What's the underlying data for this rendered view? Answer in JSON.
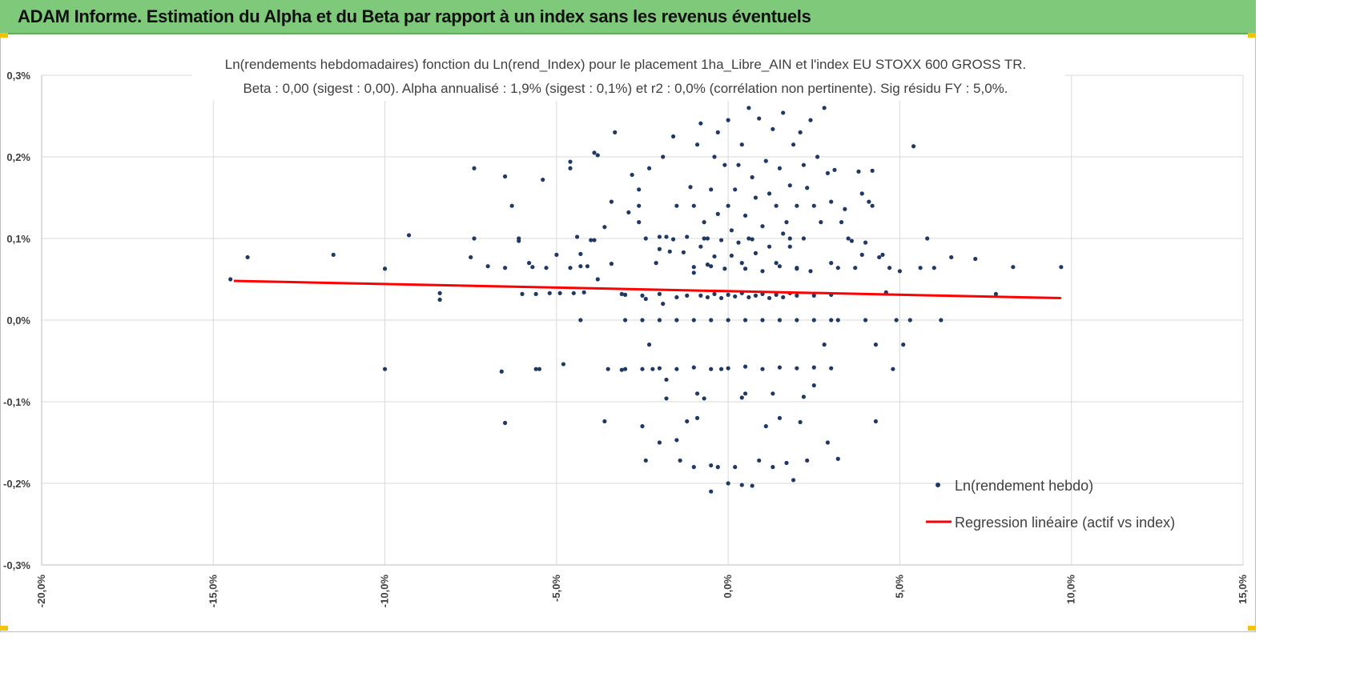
{
  "header": {
    "title": "ADAM Informe. Estimation du Alpha et du Beta par rapport à un index sans les revenus éventuels",
    "background": "#7ec97a"
  },
  "chart_data": {
    "type": "scatter",
    "title": "Ln(rendements hebdomadaires) fonction du Ln(rend_Index) pour le placement 1ha_Libre_AIN et l'index EU STOXX 600 GROSS TR.",
    "subtitle": "Beta : 0,00 (sigest : 0,00).  Alpha annualisé : 1,9% (sigest : 0,1%) et r2 : 0,0% (corrélation non pertinente). Sig résidu FY : 5,0%.",
    "xlim": [
      -20,
      15
    ],
    "ylim": [
      -0.3,
      0.3
    ],
    "x_ticks": [
      {
        "value": -20,
        "label": "-20,0%"
      },
      {
        "value": -15,
        "label": "-15,0%"
      },
      {
        "value": -10,
        "label": "-10,0%"
      },
      {
        "value": -5,
        "label": "-5,0%"
      },
      {
        "value": 0,
        "label": "0,0%"
      },
      {
        "value": 5,
        "label": "5,0%"
      },
      {
        "value": 10,
        "label": "10,0%"
      },
      {
        "value": 15,
        "label": "15,0%"
      }
    ],
    "y_ticks": [
      {
        "value": 0.3,
        "label": "0,3%"
      },
      {
        "value": 0.2,
        "label": "0,2%"
      },
      {
        "value": 0.1,
        "label": "0,1%"
      },
      {
        "value": 0.0,
        "label": "0,0%"
      },
      {
        "value": -0.1,
        "label": "-0,1%"
      },
      {
        "value": -0.2,
        "label": "-0,2%"
      },
      {
        "value": -0.3,
        "label": "-0,3%"
      }
    ],
    "grid": true,
    "legend_position": "bottom-right",
    "series": [
      {
        "name": "Ln(rendement hebdo)",
        "kind": "scatter",
        "color": "#1f3864",
        "points": [
          [
            -14.5,
            0.05
          ],
          [
            -14,
            0.077
          ],
          [
            -11.5,
            0.08
          ],
          [
            -10,
            0.063
          ],
          [
            -10,
            -0.06
          ],
          [
            -9.3,
            0.104
          ],
          [
            -8.4,
            0.033
          ],
          [
            -8.4,
            0.025
          ],
          [
            -7.5,
            0.077
          ],
          [
            -7.4,
            0.186
          ],
          [
            -7.4,
            0.1
          ],
          [
            -7,
            0.066
          ],
          [
            -6.6,
            -0.063
          ],
          [
            -6.5,
            -0.126
          ],
          [
            -6.5,
            0.176
          ],
          [
            -6.5,
            0.064
          ],
          [
            -6.3,
            0.14
          ],
          [
            -6.1,
            0.1
          ],
          [
            -6.1,
            0.097
          ],
          [
            -6,
            0.032
          ],
          [
            -5.8,
            0.07
          ],
          [
            -5.7,
            0.065
          ],
          [
            -5.6,
            0.032
          ],
          [
            -5.6,
            -0.06
          ],
          [
            -5.5,
            -0.06
          ],
          [
            -5.4,
            0.172
          ],
          [
            -5.3,
            0.064
          ],
          [
            -5.2,
            0.033
          ],
          [
            -5,
            0.08
          ],
          [
            -4.9,
            0.033
          ],
          [
            -4.8,
            -0.054
          ],
          [
            -4.6,
            0.064
          ],
          [
            -4.6,
            0.194
          ],
          [
            -4.6,
            0.186
          ],
          [
            -4.5,
            0.033
          ],
          [
            -4.4,
            0.102
          ],
          [
            -4.3,
            0.066
          ],
          [
            -4.3,
            0.081
          ],
          [
            -4.3,
            0
          ],
          [
            -4.2,
            0.034
          ],
          [
            -4.1,
            0.066
          ],
          [
            -4.0,
            0.098
          ],
          [
            -3.9,
            0.098
          ],
          [
            -3.9,
            0.205
          ],
          [
            -3.8,
            0.202
          ],
          [
            -3.8,
            0.05
          ],
          [
            -3.6,
            -0.124
          ],
          [
            -3.6,
            0.114
          ],
          [
            -3.4,
            0.145
          ],
          [
            -3.4,
            0.069
          ],
          [
            -3.3,
            0.23
          ],
          [
            -3.1,
            -0.061
          ],
          [
            -3.1,
            0.032
          ],
          [
            -2.9,
            0.132
          ],
          [
            -2.8,
            0.178
          ],
          [
            -2.6,
            0.14
          ],
          [
            -2.6,
            0.16
          ],
          [
            -2.6,
            0.12
          ],
          [
            -2.5,
            -0.13
          ],
          [
            -2.4,
            0.026
          ],
          [
            -2.4,
            -0.172
          ],
          [
            -2.3,
            0.186
          ],
          [
            -2.3,
            -0.03
          ],
          [
            -2.2,
            -0.06
          ],
          [
            -2.1,
            0.07
          ],
          [
            -2.0,
            0.102
          ],
          [
            -2.0,
            -0.15
          ],
          [
            -2.0,
            0.087
          ],
          [
            -1.9,
            0.2
          ],
          [
            -1.9,
            0.02
          ],
          [
            -1.8,
            0.102
          ],
          [
            -1.8,
            -0.073
          ],
          [
            -1.7,
            0.084
          ],
          [
            -1.6,
            0.225
          ],
          [
            -1.5,
            0.14
          ],
          [
            -1.5,
            -0.147
          ],
          [
            -1.4,
            -0.172
          ],
          [
            -1.3,
            0.083
          ],
          [
            -1.2,
            0.102
          ],
          [
            -1.2,
            -0.124
          ],
          [
            -1.1,
            0.163
          ],
          [
            -1.0,
            0.14
          ],
          [
            -1.0,
            0.058
          ],
          [
            -1.0,
            -0.18
          ],
          [
            -0.9,
            0.215
          ],
          [
            -0.9,
            -0.12
          ],
          [
            -0.8,
            0.09
          ],
          [
            -0.8,
            0.241
          ],
          [
            -0.7,
            0.12
          ],
          [
            -0.7,
            -0.096
          ],
          [
            -0.6,
            0.1
          ],
          [
            -0.6,
            0.068
          ],
          [
            -0.5,
            0.16
          ],
          [
            -0.5,
            -0.178
          ],
          [
            -0.5,
            -0.21
          ],
          [
            -0.4,
            0.078
          ],
          [
            -0.4,
            0.2
          ],
          [
            -0.3,
            0.23
          ],
          [
            -0.3,
            0.13
          ],
          [
            -0.3,
            -0.18
          ],
          [
            -0.2,
            0.098
          ],
          [
            -0.2,
            -0.06
          ],
          [
            -0.1,
            0.19
          ],
          [
            -0.1,
            0.063
          ],
          [
            0,
            0.245
          ],
          [
            0,
            0.14
          ],
          [
            0,
            -0.2
          ],
          [
            0.1,
            0.079
          ],
          [
            0.1,
            0.11
          ],
          [
            0.2,
            0.16
          ],
          [
            0.2,
            -0.18
          ],
          [
            0.3,
            0.19
          ],
          [
            0.3,
            0.095
          ],
          [
            0.4,
            0.07
          ],
          [
            0.4,
            0.215
          ],
          [
            0.4,
            -0.202
          ],
          [
            0.5,
            0.128
          ],
          [
            0.5,
            -0.09
          ],
          [
            0.6,
            0.26
          ],
          [
            0.6,
            0.1
          ],
          [
            0.7,
            0.175
          ],
          [
            0.7,
            -0.203
          ],
          [
            0.8,
            0.15
          ],
          [
            0.8,
            0.082
          ],
          [
            0.9,
            0.247
          ],
          [
            0.9,
            -0.172
          ],
          [
            1.0,
            0.115
          ],
          [
            1.0,
            0.06
          ],
          [
            1.1,
            0.195
          ],
          [
            1.1,
            -0.13
          ],
          [
            1.2,
            0.155
          ],
          [
            1.2,
            0.09
          ],
          [
            1.3,
            0.234
          ],
          [
            1.3,
            -0.18
          ],
          [
            1.4,
            0.14
          ],
          [
            1.4,
            0.07
          ],
          [
            1.5,
            0.186
          ],
          [
            1.5,
            -0.12
          ],
          [
            1.6,
            0.106
          ],
          [
            1.6,
            0.254
          ],
          [
            1.7,
            0.12
          ],
          [
            1.7,
            -0.175
          ],
          [
            1.8,
            0.165
          ],
          [
            1.8,
            0.09
          ],
          [
            1.9,
            0.215
          ],
          [
            1.9,
            -0.196
          ],
          [
            2.0,
            0.14
          ],
          [
            2.0,
            0.064
          ],
          [
            2.1,
            0.23
          ],
          [
            2.1,
            -0.125
          ],
          [
            2.2,
            0.19
          ],
          [
            2.2,
            0.1
          ],
          [
            2.3,
            0.162
          ],
          [
            2.3,
            -0.172
          ],
          [
            2.4,
            0.245
          ],
          [
            2.4,
            0.06
          ],
          [
            2.5,
            0.14
          ],
          [
            2.5,
            -0.08
          ],
          [
            2.6,
            0.2
          ],
          [
            2.7,
            0.12
          ],
          [
            2.8,
            0.26
          ],
          [
            2.8,
            -0.03
          ],
          [
            2.9,
            0.18
          ],
          [
            2.9,
            -0.15
          ],
          [
            3.0,
            0.145
          ],
          [
            3.0,
            0.07
          ],
          [
            3.1,
            0.184
          ],
          [
            3.2,
            0.064
          ],
          [
            3.2,
            -0.17
          ],
          [
            3.3,
            0.12
          ],
          [
            3.4,
            0.136
          ],
          [
            3.5,
            0.1
          ],
          [
            3.6,
            0.097
          ],
          [
            3.7,
            0.064
          ],
          [
            3.8,
            0.182
          ],
          [
            3.9,
            0.155
          ],
          [
            3.9,
            0.08
          ],
          [
            4.0,
            0.095
          ],
          [
            4.1,
            0.145
          ],
          [
            4.2,
            0.14
          ],
          [
            4.2,
            0.183
          ],
          [
            4.3,
            -0.124
          ],
          [
            4.3,
            -0.03
          ],
          [
            4.4,
            0.077
          ],
          [
            4.5,
            0.08
          ],
          [
            4.6,
            0.034
          ],
          [
            4.7,
            0.064
          ],
          [
            4.8,
            -0.06
          ],
          [
            4.9,
            0
          ],
          [
            5.0,
            0.06
          ],
          [
            5.1,
            -0.03
          ],
          [
            5.3,
            0
          ],
          [
            5.4,
            0.213
          ],
          [
            5.6,
            0.064
          ],
          [
            5.8,
            0.1
          ],
          [
            6.0,
            0.064
          ],
          [
            6.2,
            0
          ],
          [
            6.5,
            0.077
          ],
          [
            7.2,
            0.075
          ],
          [
            7.8,
            0.032
          ],
          [
            8.3,
            0.065
          ],
          [
            9.7,
            0.065
          ],
          [
            -0.8,
            0.03
          ],
          [
            -0.6,
            0.028
          ],
          [
            -0.4,
            0.032
          ],
          [
            -0.2,
            0.027
          ],
          [
            0,
            0.031
          ],
          [
            0.2,
            0.029
          ],
          [
            0.4,
            0.033
          ],
          [
            0.6,
            0.028
          ],
          [
            0.8,
            0.03
          ],
          [
            1.0,
            0.032
          ],
          [
            1.2,
            0.027
          ],
          [
            1.4,
            0.031
          ],
          [
            1.6,
            0.028
          ],
          [
            1.8,
            0.033
          ],
          [
            2.0,
            0.03
          ],
          [
            -1.2,
            0.03
          ],
          [
            -1.5,
            0.028
          ],
          [
            -2.0,
            0.032
          ],
          [
            -2.5,
            0.03
          ],
          [
            -3.0,
            0.031
          ],
          [
            2.5,
            0.03
          ],
          [
            3.0,
            0.031
          ],
          [
            -1.0,
            0.065
          ],
          [
            -0.5,
            0.066
          ],
          [
            0.5,
            0.063
          ],
          [
            1.5,
            0.066
          ],
          [
            2.0,
            0.063
          ],
          [
            -1.0,
            -0.058
          ],
          [
            -0.5,
            -0.06
          ],
          [
            0,
            -0.059
          ],
          [
            0.5,
            -0.057
          ],
          [
            1.0,
            -0.06
          ],
          [
            1.5,
            -0.058
          ],
          [
            2.0,
            -0.059
          ],
          [
            -1.5,
            -0.06
          ],
          [
            -2.0,
            -0.059
          ],
          [
            -2.5,
            -0.06
          ],
          [
            2.5,
            -0.058
          ],
          [
            -3.0,
            -0.06
          ],
          [
            3.0,
            -0.059
          ],
          [
            -3.5,
            -0.06
          ],
          [
            -0.9,
            -0.09
          ],
          [
            0.4,
            -0.095
          ],
          [
            1.3,
            -0.09
          ],
          [
            -1.8,
            -0.096
          ],
          [
            2.2,
            -0.094
          ],
          [
            -0.7,
            0.1
          ],
          [
            0.7,
            0.099
          ],
          [
            1.8,
            0.1
          ],
          [
            -1.6,
            0.099
          ],
          [
            -2.4,
            0.1
          ],
          [
            -1.0,
            0
          ],
          [
            -0.5,
            0
          ],
          [
            0,
            0
          ],
          [
            0.5,
            0
          ],
          [
            1.0,
            0
          ],
          [
            1.5,
            0
          ],
          [
            2.0,
            0
          ],
          [
            2.5,
            0
          ],
          [
            3.0,
            0
          ],
          [
            -1.5,
            0
          ],
          [
            -2.0,
            0
          ],
          [
            -2.5,
            0
          ],
          [
            -3.0,
            0
          ],
          [
            3.2,
            0
          ],
          [
            4.0,
            0
          ]
        ]
      },
      {
        "name": "Regression linéaire (actif vs index)",
        "kind": "line",
        "color": "#ff0000",
        "points": [
          [
            -14.4,
            0.048
          ],
          [
            9.7,
            0.027
          ]
        ]
      }
    ]
  }
}
